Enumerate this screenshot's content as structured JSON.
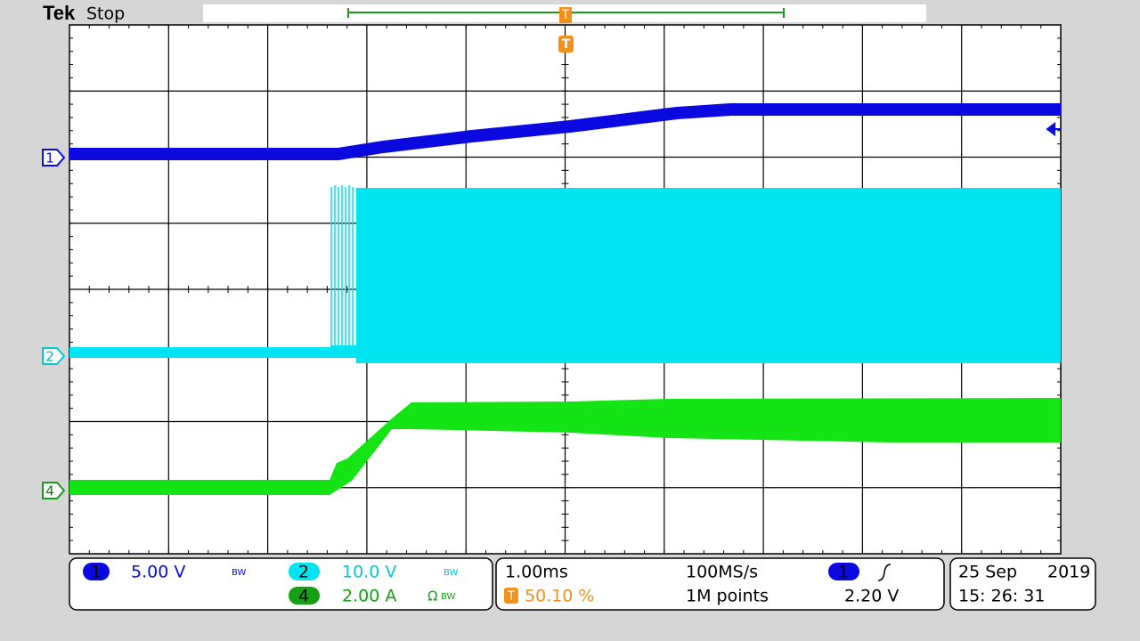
{
  "header": {
    "brand": "Tek",
    "status": "Stop",
    "trigger_marker": "T"
  },
  "channel_markers": [
    "1",
    "2",
    "4"
  ],
  "readout": {
    "ch1": {
      "label": "1",
      "scale": "5.00 V",
      "bw": "BW"
    },
    "ch2": {
      "label": "2",
      "scale": "10.0 V",
      "bw": "BW"
    },
    "ch4": {
      "label": "4",
      "scale": "2.00 A",
      "ohm": "Ω",
      "bw": "BW"
    },
    "timebase": {
      "scale": "1.00ms",
      "sample_rate": "100MS/s",
      "trigger_icon": "T",
      "trigger_position": "50.10 %",
      "record_length": "1M points",
      "trigger_source": "1",
      "trigger_level": "2.20 V"
    },
    "datetime": {
      "date": "25 Sep",
      "year": "2019",
      "time": "15: 26: 31"
    }
  }
}
